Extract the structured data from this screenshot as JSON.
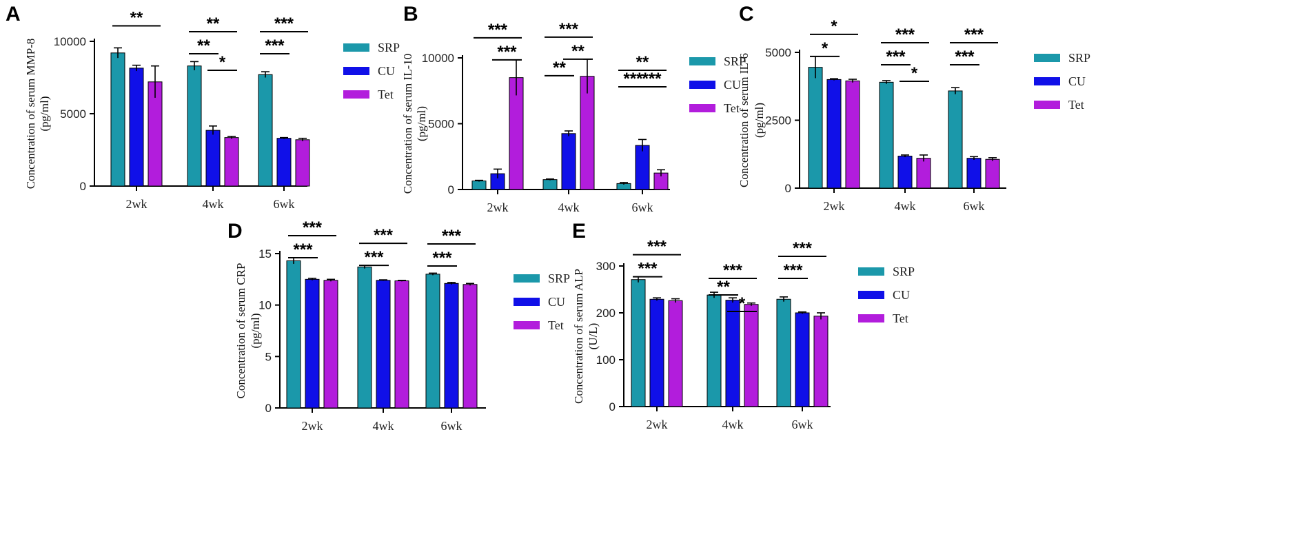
{
  "colors": {
    "SRP": "#1b98aa",
    "CU": "#1010e8",
    "Tet": "#b21ddc"
  },
  "chart_data": [
    {
      "type": "bar",
      "letter": "A",
      "ylabel_lines": [
        "Concentration of serum MMP-8",
        "(pg/ml)"
      ],
      "categories": [
        "2wk",
        "4wk",
        "6wk"
      ],
      "ylim": [
        0,
        10000
      ],
      "yticks": [
        0,
        5000,
        10000
      ],
      "series": [
        {
          "name": "SRP",
          "values": [
            9200,
            8300,
            7700
          ],
          "errors": [
            350,
            300,
            200
          ]
        },
        {
          "name": "CU",
          "values": [
            8150,
            3850,
            3300
          ],
          "errors": [
            200,
            300,
            50
          ]
        },
        {
          "name": "Tet",
          "values": [
            7200,
            3350,
            3200
          ],
          "errors": [
            1100,
            80,
            100
          ]
        }
      ],
      "significance": [
        {
          "cat": 0,
          "from": 0,
          "to": 2,
          "label": "**",
          "level": 0
        },
        {
          "cat": 1,
          "from": 0,
          "to": 1,
          "label": "**",
          "level": 1
        },
        {
          "cat": 1,
          "from": 0,
          "to": 2,
          "label": "**",
          "level": 0
        },
        {
          "cat": 1,
          "from": 1,
          "to": 2,
          "label": "*",
          "level": 2
        },
        {
          "cat": 2,
          "from": 0,
          "to": 1,
          "label": "***",
          "level": 1
        },
        {
          "cat": 2,
          "from": 0,
          "to": 2,
          "label": "***",
          "level": 0
        }
      ]
    },
    {
      "type": "bar",
      "letter": "B",
      "ylabel_lines": [
        "Concentration of serum IL-10",
        "(pg/ml)"
      ],
      "categories": [
        "2wk",
        "4wk",
        "6wk"
      ],
      "ylim": [
        0,
        10000
      ],
      "yticks": [
        0,
        5000,
        10000
      ],
      "series": [
        {
          "name": "SRP",
          "values": [
            650,
            750,
            450
          ],
          "errors": [
            50,
            50,
            80
          ]
        },
        {
          "name": "CU",
          "values": [
            1200,
            4250,
            3350
          ],
          "errors": [
            350,
            200,
            450
          ]
        },
        {
          "name": "Tet",
          "values": [
            8500,
            8600,
            1250
          ],
          "errors": [
            1350,
            1300,
            250
          ]
        }
      ],
      "significance": [
        {
          "cat": 0,
          "from": 1,
          "to": 2,
          "label": "***",
          "level": 1
        },
        {
          "cat": 0,
          "from": 0,
          "to": 2,
          "label": "***",
          "level": 0
        },
        {
          "cat": 1,
          "from": 0,
          "to": 1,
          "label": "**",
          "level": 2
        },
        {
          "cat": 1,
          "from": 1,
          "to": 2,
          "label": "**",
          "level": 1
        },
        {
          "cat": 1,
          "from": 0,
          "to": 2,
          "label": "***",
          "level": 0
        },
        {
          "cat": 2,
          "from": 0,
          "to": 1,
          "label": "***",
          "level": 2
        },
        {
          "cat": 2,
          "from": 1,
          "to": 2,
          "label": "***",
          "level": 2
        },
        {
          "cat": 2,
          "from": 0,
          "to": 2,
          "label": "**",
          "level": 1
        }
      ]
    },
    {
      "type": "bar",
      "letter": "C",
      "ylabel_lines": [
        "Concentration of serum IL-6",
        "(pg/ml)"
      ],
      "categories": [
        "2wk",
        "4wk",
        "6wk"
      ],
      "ylim": [
        0,
        5000
      ],
      "yticks": [
        0,
        2500,
        5000
      ],
      "series": [
        {
          "name": "SRP",
          "values": [
            4450,
            3900,
            3580
          ],
          "errors": [
            400,
            60,
            120
          ]
        },
        {
          "name": "CU",
          "values": [
            4000,
            1180,
            1100
          ],
          "errors": [
            30,
            40,
            60
          ]
        },
        {
          "name": "Tet",
          "values": [
            3950,
            1100,
            1060
          ],
          "errors": [
            60,
            120,
            60
          ]
        }
      ],
      "significance": [
        {
          "cat": 0,
          "from": 0,
          "to": 1,
          "label": "*",
          "level": 1
        },
        {
          "cat": 0,
          "from": 0,
          "to": 2,
          "label": "*",
          "level": 0
        },
        {
          "cat": 1,
          "from": 0,
          "to": 1,
          "label": "***",
          "level": 1
        },
        {
          "cat": 1,
          "from": 0,
          "to": 2,
          "label": "***",
          "level": 0
        },
        {
          "cat": 1,
          "from": 1,
          "to": 2,
          "label": "*",
          "level": 2
        },
        {
          "cat": 2,
          "from": 0,
          "to": 1,
          "label": "***",
          "level": 1
        },
        {
          "cat": 2,
          "from": 0,
          "to": 2,
          "label": "***",
          "level": 0
        }
      ]
    },
    {
      "type": "bar",
      "letter": "D",
      "ylabel_lines": [
        "Concentration of serum CRP",
        "(pg/ml)"
      ],
      "categories": [
        "2wk",
        "4wk",
        "6wk"
      ],
      "ylim": [
        0,
        15
      ],
      "yticks": [
        0,
        5,
        10,
        15
      ],
      "series": [
        {
          "name": "SRP",
          "values": [
            14.3,
            13.7,
            13.0
          ],
          "errors": [
            0.3,
            0.15,
            0.1
          ]
        },
        {
          "name": "CU",
          "values": [
            12.5,
            12.4,
            12.1
          ],
          "errors": [
            0.1,
            0.05,
            0.1
          ]
        },
        {
          "name": "Tet",
          "values": [
            12.4,
            12.35,
            12.0
          ],
          "errors": [
            0.1,
            0.05,
            0.1
          ]
        }
      ],
      "significance": [
        {
          "cat": 0,
          "from": 0,
          "to": 1,
          "label": "***",
          "level": 1
        },
        {
          "cat": 0,
          "from": 0,
          "to": 2,
          "label": "***",
          "level": 0
        },
        {
          "cat": 1,
          "from": 0,
          "to": 1,
          "label": "***",
          "level": 1
        },
        {
          "cat": 1,
          "from": 0,
          "to": 2,
          "label": "***",
          "level": 0
        },
        {
          "cat": 2,
          "from": 0,
          "to": 1,
          "label": "***",
          "level": 1
        },
        {
          "cat": 2,
          "from": 0,
          "to": 2,
          "label": "***",
          "level": 0
        }
      ]
    },
    {
      "type": "bar",
      "letter": "E",
      "ylabel_lines": [
        "Concentration of serum ALP",
        "(U/L)"
      ],
      "categories": [
        "2wk",
        "4wk",
        "6wk"
      ],
      "ylim": [
        0,
        300
      ],
      "yticks": [
        0,
        100,
        200,
        300
      ],
      "series": [
        {
          "name": "SRP",
          "values": [
            271,
            238,
            229
          ],
          "errors": [
            6,
            6,
            5
          ]
        },
        {
          "name": "CU",
          "values": [
            229,
            227,
            200
          ],
          "errors": [
            3,
            5,
            2
          ]
        },
        {
          "name": "Tet",
          "values": [
            226,
            218,
            193
          ],
          "errors": [
            4,
            3,
            7
          ]
        }
      ],
      "significance": [
        {
          "cat": 0,
          "from": 0,
          "to": 1,
          "label": "***",
          "level": 1
        },
        {
          "cat": 0,
          "from": 0,
          "to": 2,
          "label": "***",
          "level": 0
        },
        {
          "cat": 1,
          "from": 0,
          "to": 1,
          "label": "**",
          "level": 2
        },
        {
          "cat": 1,
          "from": 1,
          "to": 2,
          "label": "*",
          "level": 3
        },
        {
          "cat": 1,
          "from": 0,
          "to": 2,
          "label": "***",
          "level": 1
        },
        {
          "cat": 2,
          "from": 0,
          "to": 1,
          "label": "***",
          "level": 1
        },
        {
          "cat": 2,
          "from": 0,
          "to": 2,
          "label": "***",
          "level": 0
        }
      ]
    }
  ]
}
